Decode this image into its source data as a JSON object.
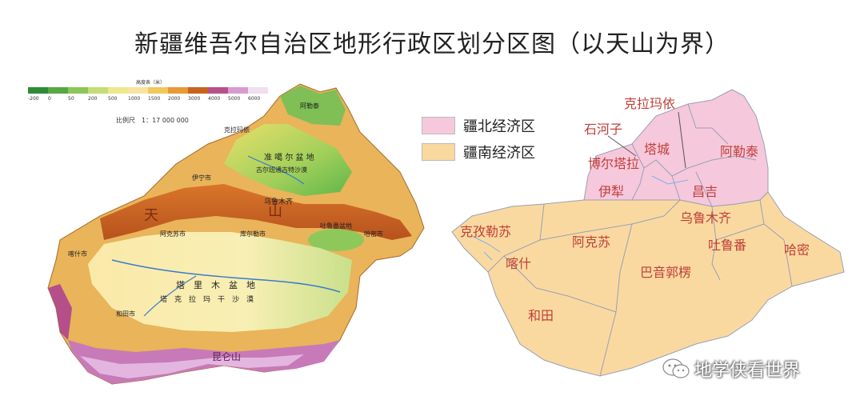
{
  "title": "新疆维吾尔自治区地形行政区划分区图（以天山为界）",
  "terrain_map": {
    "legend_title": "高度表（米）",
    "elevation_ticks": [
      "-200",
      "0",
      "50",
      "200",
      "500",
      "1000",
      "1500",
      "2000",
      "3000",
      "4000",
      "5000",
      "6000"
    ],
    "scale": "比例尺　1：17 000 000",
    "labels": {
      "junggar": "准 噶 尔 盆 地",
      "gurbantunggut": "古尔班通古特沙漠",
      "tarim": "塔　里　木　盆　地",
      "taklimakan": "塔　克　拉　玛　干　沙　漠",
      "tianshan1": "天",
      "tianshan2": "山",
      "urumqi": "乌鲁木齐",
      "turpan": "吐鲁番盆地",
      "hami": "哈密市",
      "korla": "库尔勒市",
      "aksu": "阿克苏市",
      "kashgar": "喀什市",
      "hotan": "和田市",
      "yining": "伊宁市",
      "karamay": "克拉玛依",
      "altay": "阿勒泰",
      "kunlun": "昆仑山"
    }
  },
  "legend": {
    "north": {
      "label": "疆北经济区",
      "color": "#f6c8dc"
    },
    "south": {
      "label": "疆南经济区",
      "color": "#fad9a0"
    }
  },
  "admin_map": {
    "labels": {
      "karamay": "克拉玛依",
      "shihezi": "石河子",
      "tacheng": "塔城",
      "altay": "阿勒泰",
      "bortala": "博尔塔拉",
      "changji": "昌吉",
      "ili": "伊犁",
      "urumqi": "乌鲁木齐",
      "kizilsu": "克孜勒苏",
      "aksu": "阿克苏",
      "turpan": "吐鲁番",
      "hami": "哈密",
      "kashgar": "喀什",
      "bayingolin": "巴音郭楞",
      "hotan": "和田"
    }
  },
  "watermark": {
    "text": "地学侠看世界",
    "icon": "wechat-icon"
  }
}
